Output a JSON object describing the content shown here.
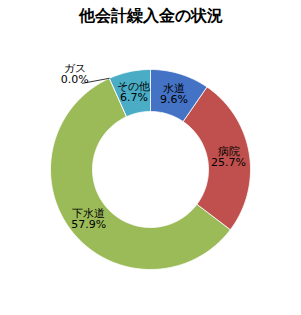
{
  "chart_data": {
    "type": "donut",
    "title": "他会計繰入金の状況",
    "categories": [
      "水道",
      "病院",
      "下水道",
      "ガス",
      "その他"
    ],
    "values": [
      9.6,
      25.7,
      57.9,
      0.0,
      6.7
    ],
    "value_labels": [
      "9.6%",
      "25.7%",
      "57.9%",
      "0.0%",
      "6.7%"
    ],
    "colors": [
      "#4472C4",
      "#C0504D",
      "#9BBB59",
      "#1A7FA0",
      "#4BACC6"
    ],
    "data_labels": true
  }
}
